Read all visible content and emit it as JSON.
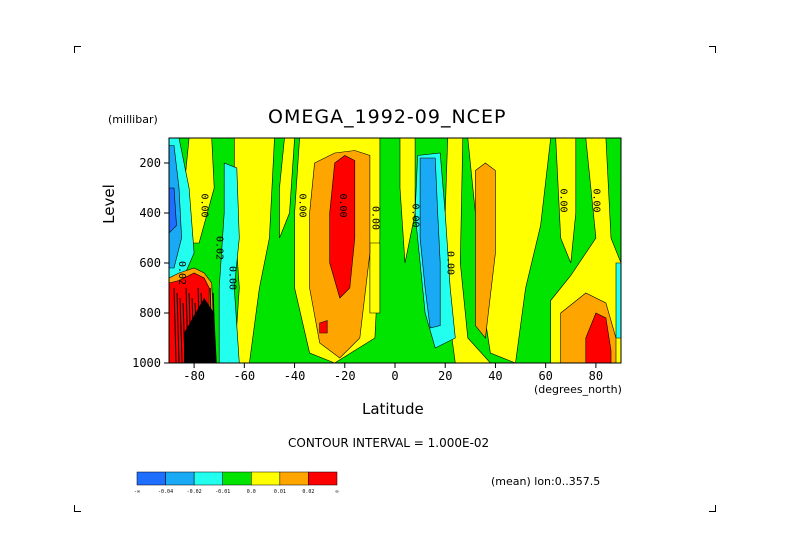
{
  "chart_data": {
    "type": "heatmap",
    "title": "OMEGA_1992-09_NCEP",
    "xlabel": "Latitude",
    "xunits": "(degrees_north)",
    "ylabel": "Level",
    "yunits": "(millibar)",
    "xlim": [
      -90,
      90
    ],
    "ylim": [
      1000,
      100
    ],
    "x_ticks": [
      "-80",
      "-60",
      "-40",
      "-20",
      "0",
      "20",
      "40",
      "60",
      "80"
    ],
    "y_ticks": [
      "200",
      "400",
      "600",
      "800",
      "1000"
    ],
    "contour_interval_text": "CONTOUR INTERVAL = 1.000E-02",
    "footnote": "(mean) lon:0..357.5",
    "contour_labels": [
      {
        "lat": -71,
        "level": 540,
        "text": "0.02"
      },
      {
        "lat": -86,
        "level": 640,
        "text": "0.02"
      },
      {
        "lat": -77,
        "level": 370,
        "text": "0.00"
      },
      {
        "lat": -66,
        "level": 660,
        "text": "0.00"
      },
      {
        "lat": -38,
        "level": 370,
        "text": "0.00"
      },
      {
        "lat": -22,
        "level": 370,
        "text": "0.00"
      },
      {
        "lat": -9,
        "level": 420,
        "text": "0.00"
      },
      {
        "lat": 7,
        "level": 410,
        "text": "0.00"
      },
      {
        "lat": 21,
        "level": 600,
        "text": "0.00"
      },
      {
        "lat": 66,
        "level": 350,
        "text": "0.00"
      },
      {
        "lat": 79,
        "level": 350,
        "text": "0.00"
      }
    ],
    "colorbar": {
      "colors": [
        "#1e6eff",
        "#19a9f5",
        "#22ffee",
        "#00e400",
        "#ffff00",
        "#ffa500",
        "#ff0000"
      ],
      "labels": [
        "-∞",
        "-0.04",
        "-0.02",
        "-0.01",
        "0.0",
        "0.01",
        "0.02",
        "∞"
      ]
    },
    "regions": [
      {
        "c": 3,
        "pts": [
          [
            -90,
            100
          ],
          [
            90,
            100
          ],
          [
            90,
            1000
          ],
          [
            -90,
            1000
          ]
        ]
      },
      {
        "c": 4,
        "pts": [
          [
            -82,
            100
          ],
          [
            -73,
            100
          ],
          [
            -72,
            300
          ],
          [
            -78,
            520
          ],
          [
            -85,
            520
          ],
          [
            -84,
            300
          ]
        ]
      },
      {
        "c": 4,
        "pts": [
          [
            -64,
            100
          ],
          [
            -48,
            100
          ],
          [
            -50,
            500
          ],
          [
            -54,
            700
          ],
          [
            -58,
            1000
          ],
          [
            -64,
            1000
          ],
          [
            -62,
            700
          ],
          [
            -64,
            400
          ]
        ]
      },
      {
        "c": 4,
        "pts": [
          [
            -44,
            100
          ],
          [
            -40,
            100
          ],
          [
            -42,
            400
          ],
          [
            -46,
            500
          ],
          [
            -46,
            300
          ]
        ]
      },
      {
        "c": 4,
        "pts": [
          [
            -38,
            100
          ],
          [
            -6,
            100
          ],
          [
            -6,
            500
          ],
          [
            -8,
            900
          ],
          [
            -24,
            1000
          ],
          [
            -34,
            960
          ],
          [
            -40,
            700
          ],
          [
            -40,
            400
          ]
        ]
      },
      {
        "c": 4,
        "pts": [
          [
            2,
            100
          ],
          [
            8,
            100
          ],
          [
            8,
            400
          ],
          [
            4,
            600
          ],
          [
            2,
            300
          ]
        ]
      },
      {
        "c": 4,
        "pts": [
          [
            -10,
            520
          ],
          [
            -6,
            520
          ],
          [
            -6,
            800
          ],
          [
            -10,
            800
          ]
        ]
      },
      {
        "c": 4,
        "pts": [
          [
            21,
            100
          ],
          [
            27,
            100
          ],
          [
            26,
            600
          ],
          [
            29,
            900
          ],
          [
            38,
            1000
          ],
          [
            24,
            1000
          ],
          [
            20,
            700
          ],
          [
            20,
            400
          ]
        ]
      },
      {
        "c": 4,
        "pts": [
          [
            29,
            100
          ],
          [
            62,
            100
          ],
          [
            58,
            450
          ],
          [
            52,
            700
          ],
          [
            48,
            1000
          ],
          [
            38,
            960
          ],
          [
            34,
            700
          ],
          [
            32,
            400
          ]
        ]
      },
      {
        "c": 4,
        "pts": [
          [
            64,
            100
          ],
          [
            72,
            100
          ],
          [
            72,
            400
          ],
          [
            70,
            600
          ],
          [
            66,
            500
          ]
        ]
      },
      {
        "c": 4,
        "pts": [
          [
            76,
            100
          ],
          [
            84,
            100
          ],
          [
            86,
            500
          ],
          [
            90,
            600
          ],
          [
            90,
            1000
          ],
          [
            72,
            1000
          ],
          [
            62,
            1000
          ],
          [
            62,
            750
          ],
          [
            70,
            650
          ],
          [
            80,
            500
          ]
        ]
      },
      {
        "c": 5,
        "pts": [
          [
            -32,
            200
          ],
          [
            -24,
            160
          ],
          [
            -16,
            150
          ],
          [
            -10,
            170
          ],
          [
            -10,
            560
          ],
          [
            -14,
            900
          ],
          [
            -22,
            980
          ],
          [
            -30,
            920
          ],
          [
            -34,
            700
          ],
          [
            -34,
            400
          ]
        ]
      },
      {
        "c": 5,
        "pts": [
          [
            32,
            230
          ],
          [
            36,
            200
          ],
          [
            40,
            230
          ],
          [
            40,
            560
          ],
          [
            36,
            900
          ],
          [
            32,
            850
          ],
          [
            32,
            600
          ]
        ]
      },
      {
        "c": 5,
        "pts": [
          [
            66,
            800
          ],
          [
            76,
            720
          ],
          [
            84,
            760
          ],
          [
            88,
            900
          ],
          [
            88,
            1000
          ],
          [
            66,
            1000
          ]
        ]
      },
      {
        "c": 6,
        "pts": [
          [
            -24,
            200
          ],
          [
            -20,
            170
          ],
          [
            -16,
            190
          ],
          [
            -16,
            500
          ],
          [
            -18,
            700
          ],
          [
            -22,
            740
          ],
          [
            -26,
            600
          ],
          [
            -26,
            400
          ]
        ]
      },
      {
        "c": 6,
        "pts": [
          [
            -30,
            840
          ],
          [
            -27,
            830
          ],
          [
            -27,
            880
          ],
          [
            -30,
            880
          ]
        ]
      },
      {
        "c": 6,
        "pts": [
          [
            76,
            900
          ],
          [
            80,
            800
          ],
          [
            84,
            820
          ],
          [
            86,
            950
          ],
          [
            86,
            1000
          ],
          [
            76,
            1000
          ]
        ]
      },
      {
        "c": 2,
        "pts": [
          [
            -90,
            100
          ],
          [
            -86,
            100
          ],
          [
            -82,
            300
          ],
          [
            -80,
            560
          ],
          [
            -86,
            700
          ],
          [
            -90,
            700
          ]
        ]
      },
      {
        "c": 1,
        "pts": [
          [
            -90,
            130
          ],
          [
            -88,
            130
          ],
          [
            -86,
            300
          ],
          [
            -85,
            500
          ],
          [
            -88,
            620
          ],
          [
            -90,
            620
          ]
        ]
      },
      {
        "c": 0,
        "pts": [
          [
            -90,
            300
          ],
          [
            -88,
            300
          ],
          [
            -87,
            450
          ],
          [
            -90,
            480
          ]
        ]
      },
      {
        "c": 2,
        "pts": [
          [
            -68,
            200
          ],
          [
            -63,
            220
          ],
          [
            -62,
            500
          ],
          [
            -64,
            700
          ],
          [
            -62,
            1000
          ],
          [
            -70,
            1000
          ],
          [
            -70,
            700
          ],
          [
            -68,
            400
          ]
        ]
      },
      {
        "c": 2,
        "pts": [
          [
            9,
            170
          ],
          [
            18,
            160
          ],
          [
            20,
            400
          ],
          [
            22,
            700
          ],
          [
            24,
            900
          ],
          [
            16,
            940
          ],
          [
            12,
            800
          ],
          [
            10,
            600
          ],
          [
            8,
            400
          ]
        ]
      },
      {
        "c": 1,
        "pts": [
          [
            10,
            180
          ],
          [
            16,
            180
          ],
          [
            17,
            400
          ],
          [
            18,
            600
          ],
          [
            18,
            850
          ],
          [
            14,
            860
          ],
          [
            12,
            700
          ],
          [
            10,
            500
          ]
        ]
      },
      {
        "c": 2,
        "pts": [
          [
            88,
            600
          ],
          [
            90,
            600
          ],
          [
            90,
            900
          ],
          [
            88,
            900
          ]
        ]
      },
      {
        "c": 5,
        "pts": [
          [
            -90,
            660
          ],
          [
            -86,
            640
          ],
          [
            -80,
            620
          ],
          [
            -76,
            640
          ],
          [
            -73,
            680
          ],
          [
            -72,
            900
          ],
          [
            -72,
            1000
          ],
          [
            -90,
            1000
          ]
        ]
      },
      {
        "c": 6,
        "pts": [
          [
            -90,
            680
          ],
          [
            -86,
            670
          ],
          [
            -80,
            640
          ],
          [
            -76,
            660
          ],
          [
            -74,
            700
          ],
          [
            -74,
            1000
          ],
          [
            -90,
            1000
          ]
        ]
      }
    ]
  }
}
